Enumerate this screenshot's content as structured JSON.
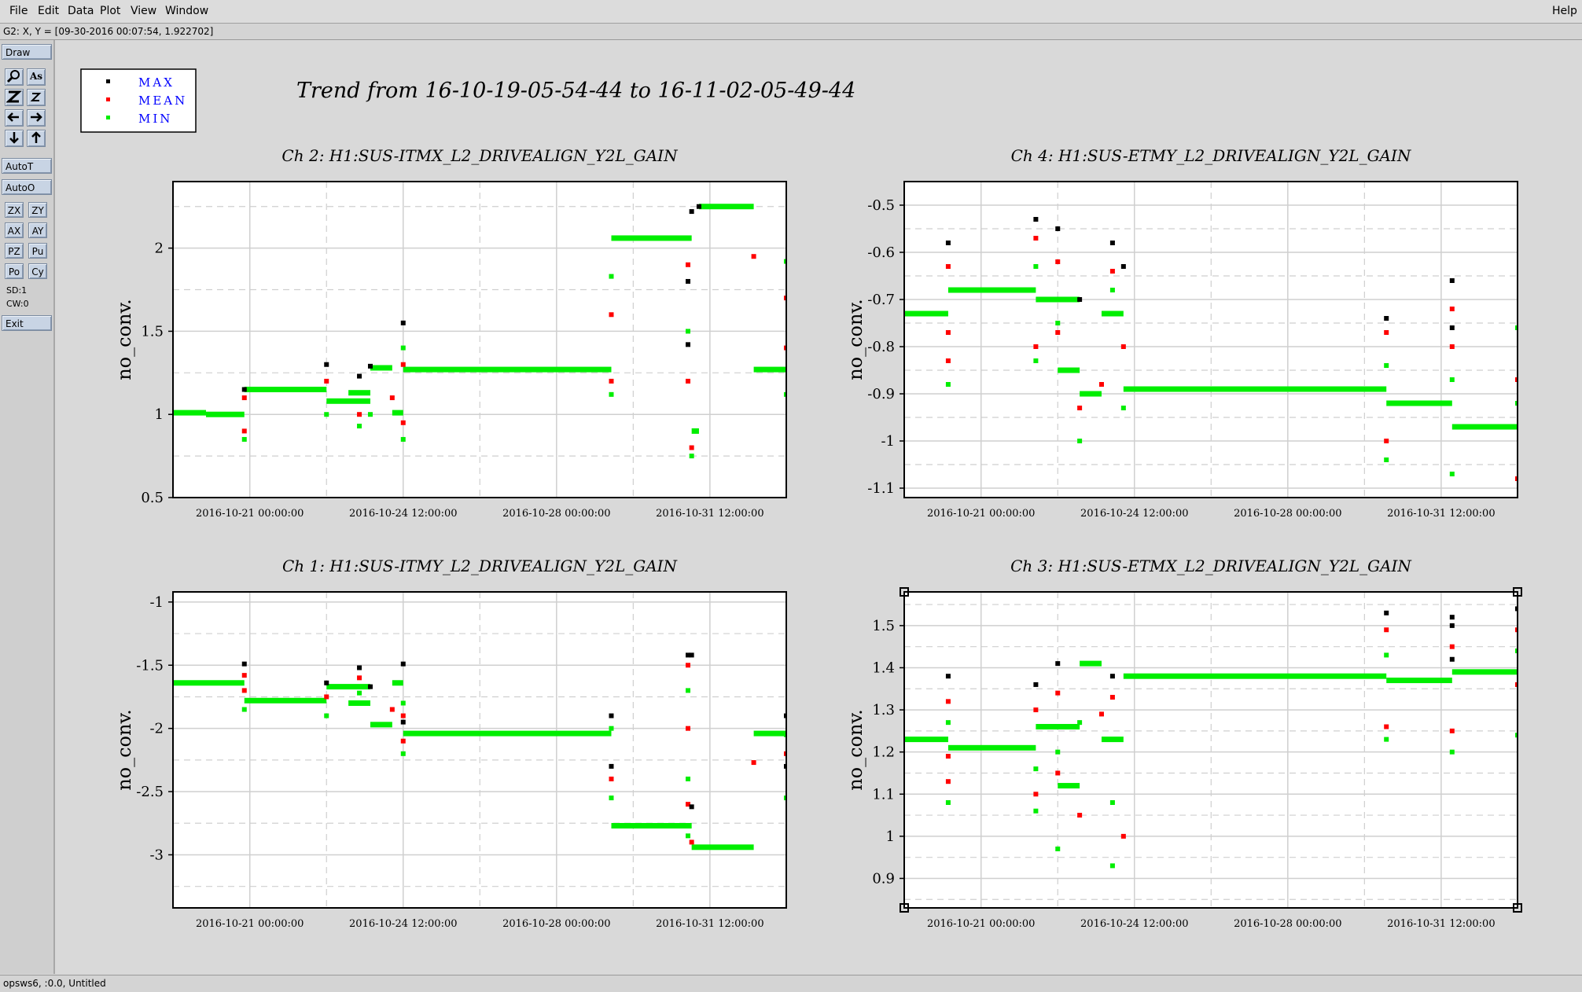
{
  "menu": {
    "items": [
      "File",
      "Edit",
      "Data",
      "Plot",
      "View",
      "Window"
    ],
    "help": "Help"
  },
  "coord_readout": "G2: X, Y = [09-30-2016 00:07:54, 1.922702]",
  "toolbar": {
    "draw": "Draw",
    "autot": "AutoT",
    "autoo": "AutoO",
    "zx": "ZX",
    "zy": "ZY",
    "ax": "AX",
    "ay": "AY",
    "pz": "PZ",
    "pu": "Pu",
    "po": "Po",
    "cy": "Cy",
    "sd": "SD:1",
    "cw": "CW:0",
    "exit": "Exit"
  },
  "status": "opsws6, :0.0, Untitled",
  "trend_title": "Trend from 16-10-19-05-54-44 to 16-11-02-05-49-44",
  "legend": [
    {
      "label": "MAX",
      "color": "#000000"
    },
    {
      "label": "MEAN",
      "color": "#ff0000"
    },
    {
      "label": "MIN",
      "color": "#00ee00"
    }
  ],
  "chart_data": [
    {
      "type": "scatter",
      "title": "Ch 2: H1:SUS-ITMX_L2_DRIVEALIGN_Y2L_GAIN",
      "ylabel": "no_conv.",
      "xlim": [
        "2016-10-19 05:54:44",
        "2016-11-02 05:49:44"
      ],
      "xticks": [
        "2016-10-21 00:00:00",
        "2016-10-24 12:00:00",
        "2016-10-28 00:00:00",
        "2016-10-31 12:00:00"
      ],
      "ylim": [
        0.5,
        2.4
      ],
      "yticks": [
        0.5,
        1,
        1.5,
        2
      ],
      "grid": true,
      "levels": [
        {
          "start": "2016-10-19 05:54",
          "end": "2016-10-20 00:00",
          "value": 1.01
        },
        {
          "start": "2016-10-20 00:00",
          "end": "2016-10-20 21:00",
          "value": 1.0
        },
        {
          "start": "2016-10-20 21:00",
          "end": "2016-10-22 18:00",
          "value": 1.15
        },
        {
          "start": "2016-10-22 18:00",
          "end": "2016-10-23 18:00",
          "value": 1.08
        },
        {
          "start": "2016-10-23 06:00",
          "end": "2016-10-23 18:00",
          "value": 1.13
        },
        {
          "start": "2016-10-23 18:00",
          "end": "2016-10-24 06:00",
          "value": 1.28
        },
        {
          "start": "2016-10-24 06:00",
          "end": "2016-10-24 12:00",
          "value": 1.01
        },
        {
          "start": "2016-10-24 12:00",
          "end": "2016-10-29 06:00",
          "value": 1.27
        },
        {
          "start": "2016-10-29 06:00",
          "end": "2016-10-31 02:00",
          "value": 2.06
        },
        {
          "start": "2016-10-31 02:00",
          "end": "2016-10-31 06:00",
          "value": 0.9
        },
        {
          "start": "2016-10-31 06:00",
          "end": "2016-11-01 12:00",
          "value": 2.25
        },
        {
          "start": "2016-11-01 12:00",
          "end": "2016-11-02 05:49",
          "value": 1.27
        }
      ],
      "points": {
        "max": [
          [
            "2016-10-20 21:00",
            1.15
          ],
          [
            "2016-10-22 18:00",
            1.3
          ],
          [
            "2016-10-23 12:00",
            1.23
          ],
          [
            "2016-10-23 18:00",
            1.29
          ],
          [
            "2016-10-24 12:00",
            1.55
          ],
          [
            "2016-10-31 00:00",
            1.8
          ],
          [
            "2016-10-31 00:00",
            1.42
          ],
          [
            "2016-10-31 02:00",
            2.22
          ],
          [
            "2016-10-31 06:00",
            2.25
          ]
        ],
        "mean": [
          [
            "2016-10-20 21:00",
            0.9
          ],
          [
            "2016-10-20 21:00",
            1.1
          ],
          [
            "2016-10-22 18:00",
            1.2
          ],
          [
            "2016-10-23 12:00",
            1.0
          ],
          [
            "2016-10-24 06:00",
            1.1
          ],
          [
            "2016-10-24 12:00",
            1.3
          ],
          [
            "2016-10-24 12:00",
            0.95
          ],
          [
            "2016-10-29 06:00",
            1.6
          ],
          [
            "2016-10-29 06:00",
            1.2
          ],
          [
            "2016-10-31 00:00",
            1.9
          ],
          [
            "2016-10-31 00:00",
            1.2
          ],
          [
            "2016-10-31 02:00",
            0.8
          ],
          [
            "2016-11-01 12:00",
            1.95
          ],
          [
            "2016-11-02 05:49",
            1.7
          ],
          [
            "2016-11-02 05:49",
            1.4
          ]
        ],
        "min": [
          [
            "2016-10-20 21:00",
            0.85
          ],
          [
            "2016-10-22 18:00",
            1.0
          ],
          [
            "2016-10-23 12:00",
            0.93
          ],
          [
            "2016-10-23 18:00",
            1.0
          ],
          [
            "2016-10-24 12:00",
            0.85
          ],
          [
            "2016-10-24 12:00",
            1.4
          ],
          [
            "2016-10-29 06:00",
            1.83
          ],
          [
            "2016-10-29 06:00",
            1.12
          ],
          [
            "2016-10-31 00:00",
            1.5
          ],
          [
            "2016-10-31 02:00",
            0.75
          ],
          [
            "2016-11-02 05:49",
            1.92
          ],
          [
            "2016-11-02 05:49",
            1.12
          ]
        ]
      }
    },
    {
      "type": "scatter",
      "title": "Ch 4: H1:SUS-ETMY_L2_DRIVEALIGN_Y2L_GAIN",
      "ylabel": "no_conv.",
      "xlim": [
        "2016-10-19 05:54:44",
        "2016-11-02 05:49:44"
      ],
      "xticks": [
        "2016-10-21 00:00:00",
        "2016-10-24 12:00:00",
        "2016-10-28 00:00:00",
        "2016-10-31 12:00:00"
      ],
      "ylim": [
        -1.12,
        -0.45
      ],
      "yticks": [
        -0.5,
        -0.6,
        -0.7,
        -0.8,
        -0.9,
        -1,
        -1.1
      ],
      "grid": true,
      "levels": [
        {
          "start": "2016-10-19 05:54",
          "end": "2016-10-20 06:00",
          "value": -0.73
        },
        {
          "start": "2016-10-20 06:00",
          "end": "2016-10-22 06:00",
          "value": -0.68
        },
        {
          "start": "2016-10-22 06:00",
          "end": "2016-10-23 06:00",
          "value": -0.7
        },
        {
          "start": "2016-10-22 18:00",
          "end": "2016-10-23 06:00",
          "value": -0.85
        },
        {
          "start": "2016-10-23 06:00",
          "end": "2016-10-23 18:00",
          "value": -0.9
        },
        {
          "start": "2016-10-23 18:00",
          "end": "2016-10-24 06:00",
          "value": -0.73
        },
        {
          "start": "2016-10-24 06:00",
          "end": "2016-10-30 06:00",
          "value": -0.89
        },
        {
          "start": "2016-10-30 06:00",
          "end": "2016-10-31 18:00",
          "value": -0.92
        },
        {
          "start": "2016-10-31 18:00",
          "end": "2016-11-02 05:49",
          "value": -0.97
        }
      ],
      "points": {
        "max": [
          [
            "2016-10-20 06:00",
            -0.58
          ],
          [
            "2016-10-22 06:00",
            -0.53
          ],
          [
            "2016-10-22 18:00",
            -0.55
          ],
          [
            "2016-10-23 06:00",
            -0.7
          ],
          [
            "2016-10-24 00:00",
            -0.58
          ],
          [
            "2016-10-24 06:00",
            -0.63
          ],
          [
            "2016-10-30 06:00",
            -0.74
          ],
          [
            "2016-10-31 18:00",
            -0.66
          ],
          [
            "2016-10-31 18:00",
            -0.76
          ]
        ],
        "mean": [
          [
            "2016-10-20 06:00",
            -0.63
          ],
          [
            "2016-10-20 06:00",
            -0.77
          ],
          [
            "2016-10-20 06:00",
            -0.83
          ],
          [
            "2016-10-22 06:00",
            -0.57
          ],
          [
            "2016-10-22 06:00",
            -0.8
          ],
          [
            "2016-10-22 18:00",
            -0.62
          ],
          [
            "2016-10-22 18:00",
            -0.77
          ],
          [
            "2016-10-23 06:00",
            -0.93
          ],
          [
            "2016-10-23 18:00",
            -0.88
          ],
          [
            "2016-10-24 00:00",
            -0.64
          ],
          [
            "2016-10-24 06:00",
            -0.8
          ],
          [
            "2016-10-30 06:00",
            -0.77
          ],
          [
            "2016-10-30 06:00",
            -1.0
          ],
          [
            "2016-10-31 18:00",
            -0.72
          ],
          [
            "2016-10-31 18:00",
            -0.8
          ],
          [
            "2016-11-02 05:49",
            -0.87
          ],
          [
            "2016-11-02 05:49",
            -1.08
          ]
        ],
        "min": [
          [
            "2016-10-20 06:00",
            -0.88
          ],
          [
            "2016-10-22 06:00",
            -0.63
          ],
          [
            "2016-10-22 06:00",
            -0.83
          ],
          [
            "2016-10-22 18:00",
            -0.75
          ],
          [
            "2016-10-23 06:00",
            -1.0
          ],
          [
            "2016-10-24 00:00",
            -0.68
          ],
          [
            "2016-10-24 06:00",
            -0.93
          ],
          [
            "2016-10-30 06:00",
            -0.84
          ],
          [
            "2016-10-30 06:00",
            -1.04
          ],
          [
            "2016-10-31 18:00",
            -0.87
          ],
          [
            "2016-10-31 18:00",
            -1.07
          ],
          [
            "2016-11-02 05:49",
            -0.76
          ],
          [
            "2016-11-02 05:49",
            -0.92
          ]
        ]
      }
    },
    {
      "type": "scatter",
      "title": "Ch 1: H1:SUS-ITMY_L2_DRIVEALIGN_Y2L_GAIN",
      "ylabel": "no_conv.",
      "xlim": [
        "2016-10-19 05:54:44",
        "2016-11-02 05:49:44"
      ],
      "xticks": [
        "2016-10-21 00:00:00",
        "2016-10-24 12:00:00",
        "2016-10-28 00:00:00",
        "2016-10-31 12:00:00"
      ],
      "ylim": [
        -3.42,
        -0.92
      ],
      "yticks": [
        -1,
        -1.5,
        -2,
        -2.5,
        -3
      ],
      "grid": true,
      "levels": [
        {
          "start": "2016-10-19 05:54",
          "end": "2016-10-20 21:00",
          "value": -1.64
        },
        {
          "start": "2016-10-20 21:00",
          "end": "2016-10-22 18:00",
          "value": -1.78
        },
        {
          "start": "2016-10-22 18:00",
          "end": "2016-10-23 18:00",
          "value": -1.67
        },
        {
          "start": "2016-10-23 06:00",
          "end": "2016-10-23 18:00",
          "value": -1.8
        },
        {
          "start": "2016-10-23 18:00",
          "end": "2016-10-24 06:00",
          "value": -1.97
        },
        {
          "start": "2016-10-24 06:00",
          "end": "2016-10-24 12:00",
          "value": -1.64
        },
        {
          "start": "2016-10-24 12:00",
          "end": "2016-10-29 06:00",
          "value": -2.04
        },
        {
          "start": "2016-10-29 06:00",
          "end": "2016-10-31 02:00",
          "value": -2.77
        },
        {
          "start": "2016-10-31 02:00",
          "end": "2016-11-01 12:00",
          "value": -2.94
        },
        {
          "start": "2016-11-01 12:00",
          "end": "2016-11-02 05:49",
          "value": -2.04
        }
      ],
      "points": {
        "max": [
          [
            "2016-10-20 21:00",
            -1.49
          ],
          [
            "2016-10-22 18:00",
            -1.64
          ],
          [
            "2016-10-23 12:00",
            -1.52
          ],
          [
            "2016-10-23 18:00",
            -1.67
          ],
          [
            "2016-10-24 12:00",
            -1.49
          ],
          [
            "2016-10-24 12:00",
            -1.95
          ],
          [
            "2016-10-29 06:00",
            -1.9
          ],
          [
            "2016-10-29 06:00",
            -2.3
          ],
          [
            "2016-10-31 00:00",
            -1.42
          ],
          [
            "2016-10-31 02:00",
            -1.42
          ],
          [
            "2016-10-31 02:00",
            -2.62
          ],
          [
            "2016-11-02 05:49",
            -1.9
          ],
          [
            "2016-11-02 05:49",
            -2.3
          ]
        ],
        "mean": [
          [
            "2016-10-20 21:00",
            -1.58
          ],
          [
            "2016-10-20 21:00",
            -1.7
          ],
          [
            "2016-10-22 18:00",
            -1.75
          ],
          [
            "2016-10-23 12:00",
            -1.6
          ],
          [
            "2016-10-24 06:00",
            -1.85
          ],
          [
            "2016-10-24 12:00",
            -1.9
          ],
          [
            "2016-10-24 12:00",
            -2.1
          ],
          [
            "2016-10-29 06:00",
            -2.4
          ],
          [
            "2016-10-31 00:00",
            -1.5
          ],
          [
            "2016-10-31 00:00",
            -2.0
          ],
          [
            "2016-10-31 00:00",
            -2.6
          ],
          [
            "2016-10-31 02:00",
            -2.9
          ],
          [
            "2016-11-01 12:00",
            -2.27
          ],
          [
            "2016-11-02 05:49",
            -2.2
          ]
        ],
        "min": [
          [
            "2016-10-20 21:00",
            -1.85
          ],
          [
            "2016-10-22 18:00",
            -1.9
          ],
          [
            "2016-10-23 12:00",
            -1.72
          ],
          [
            "2016-10-24 12:00",
            -1.8
          ],
          [
            "2016-10-24 12:00",
            -2.2
          ],
          [
            "2016-10-29 06:00",
            -2.55
          ],
          [
            "2016-10-29 06:00",
            -2.0
          ],
          [
            "2016-10-31 00:00",
            -1.7
          ],
          [
            "2016-10-31 00:00",
            -2.4
          ],
          [
            "2016-10-31 00:00",
            -2.85
          ],
          [
            "2016-11-02 05:49",
            -2.05
          ],
          [
            "2016-11-02 05:49",
            -2.55
          ]
        ]
      }
    },
    {
      "type": "scatter",
      "title": "Ch 3: H1:SUS-ETMX_L2_DRIVEALIGN_Y2L_GAIN",
      "ylabel": "no_conv.",
      "xlim": [
        "2016-10-19 05:54:44",
        "2016-11-02 05:49:44"
      ],
      "xticks": [
        "2016-10-21 00:00:00",
        "2016-10-24 12:00:00",
        "2016-10-28 00:00:00",
        "2016-10-31 12:00:00"
      ],
      "ylim": [
        0.83,
        1.58
      ],
      "yticks": [
        0.9,
        1,
        1.1,
        1.2,
        1.3,
        1.4,
        1.5
      ],
      "grid": true,
      "levels": [
        {
          "start": "2016-10-19 05:54",
          "end": "2016-10-20 06:00",
          "value": 1.23
        },
        {
          "start": "2016-10-20 06:00",
          "end": "2016-10-22 06:00",
          "value": 1.21
        },
        {
          "start": "2016-10-22 06:00",
          "end": "2016-10-23 06:00",
          "value": 1.26
        },
        {
          "start": "2016-10-22 18:00",
          "end": "2016-10-23 06:00",
          "value": 1.12
        },
        {
          "start": "2016-10-23 06:00",
          "end": "2016-10-23 18:00",
          "value": 1.41
        },
        {
          "start": "2016-10-23 18:00",
          "end": "2016-10-24 06:00",
          "value": 1.23
        },
        {
          "start": "2016-10-24 06:00",
          "end": "2016-10-30 06:00",
          "value": 1.38
        },
        {
          "start": "2016-10-30 06:00",
          "end": "2016-10-31 18:00",
          "value": 1.37
        },
        {
          "start": "2016-10-31 18:00",
          "end": "2016-11-02 05:49",
          "value": 1.39
        }
      ],
      "points": {
        "max": [
          [
            "2016-10-20 06:00",
            1.38
          ],
          [
            "2016-10-22 06:00",
            1.36
          ],
          [
            "2016-10-22 18:00",
            1.41
          ],
          [
            "2016-10-24 00:00",
            1.38
          ],
          [
            "2016-10-30 06:00",
            1.53
          ],
          [
            "2016-10-31 18:00",
            1.52
          ],
          [
            "2016-10-31 18:00",
            1.5
          ],
          [
            "2016-10-31 18:00",
            1.42
          ],
          [
            "2016-11-02 05:49",
            1.54
          ]
        ],
        "mean": [
          [
            "2016-10-20 06:00",
            1.32
          ],
          [
            "2016-10-20 06:00",
            1.19
          ],
          [
            "2016-10-20 06:00",
            1.13
          ],
          [
            "2016-10-22 06:00",
            1.3
          ],
          [
            "2016-10-22 06:00",
            1.1
          ],
          [
            "2016-10-22 18:00",
            1.34
          ],
          [
            "2016-10-22 18:00",
            1.15
          ],
          [
            "2016-10-23 06:00",
            1.05
          ],
          [
            "2016-10-23 18:00",
            1.29
          ],
          [
            "2016-10-24 00:00",
            1.33
          ],
          [
            "2016-10-24 06:00",
            1.0
          ],
          [
            "2016-10-30 06:00",
            1.49
          ],
          [
            "2016-10-30 06:00",
            1.26
          ],
          [
            "2016-10-31 18:00",
            1.45
          ],
          [
            "2016-10-31 18:00",
            1.25
          ],
          [
            "2016-11-02 05:49",
            1.49
          ],
          [
            "2016-11-02 05:49",
            1.36
          ]
        ],
        "min": [
          [
            "2016-10-20 06:00",
            1.27
          ],
          [
            "2016-10-20 06:00",
            1.08
          ],
          [
            "2016-10-22 06:00",
            1.16
          ],
          [
            "2016-10-22 06:00",
            1.06
          ],
          [
            "2016-10-22 18:00",
            1.2
          ],
          [
            "2016-10-22 18:00",
            0.97
          ],
          [
            "2016-10-23 06:00",
            1.27
          ],
          [
            "2016-10-24 00:00",
            1.08
          ],
          [
            "2016-10-24 00:00",
            0.93
          ],
          [
            "2016-10-30 06:00",
            1.43
          ],
          [
            "2016-10-30 06:00",
            1.23
          ],
          [
            "2016-10-31 18:00",
            1.2
          ],
          [
            "2016-11-02 05:49",
            1.44
          ],
          [
            "2016-11-02 05:49",
            1.24
          ]
        ]
      }
    }
  ]
}
